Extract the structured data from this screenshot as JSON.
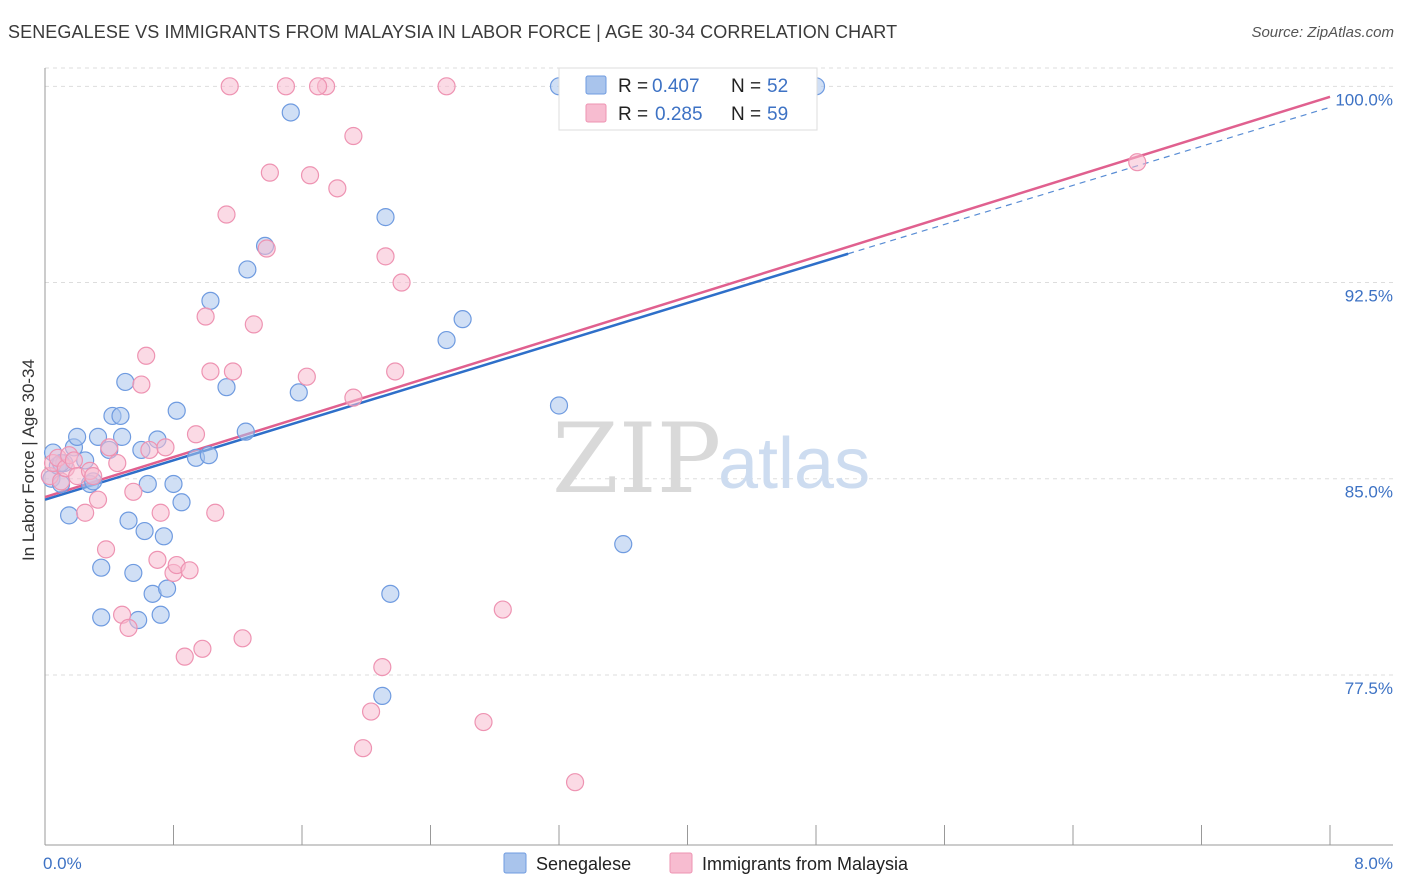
{
  "title": "SENEGALESE VS IMMIGRANTS FROM MALAYSIA IN LABOR FORCE | AGE 30-34 CORRELATION CHART",
  "source": "Source: ZipAtlas.com",
  "watermark": {
    "zip": "ZIP",
    "atlas": "atlas"
  },
  "legend": {
    "r_label": "R =",
    "n_label": "N =",
    "rows": [
      {
        "r": "0.407",
        "n": "52"
      },
      {
        "r": "0.285",
        "n": "59"
      }
    ]
  },
  "colors": {
    "blue_fill": "#a9c4ec",
    "blue_stroke": "#6f9be0",
    "blue_line": "#2e6fc9",
    "pink_fill": "#f7bcd0",
    "pink_stroke": "#ee93b2",
    "pink_line": "#e0608f",
    "grid": "#dddddd",
    "tick_label": "#3d72c4"
  },
  "chart_data": {
    "type": "scatter",
    "title": "SENEGALESE VS IMMIGRANTS FROM MALAYSIA IN LABOR FORCE | AGE 30-34 CORRELATION CHART",
    "xlabel": "",
    "ylabel": "In Labor Force | Age 30-34",
    "xlim": [
      0,
      8
    ],
    "ylim": [
      71.0,
      100.7
    ],
    "x_tick_labels": [
      {
        "value": 0,
        "label": "0.0%"
      },
      {
        "value": 8,
        "label": "8.0%"
      }
    ],
    "y_ticks": [
      {
        "value": 100.0,
        "label": "100.0%"
      },
      {
        "value": 92.5,
        "label": "92.5%"
      },
      {
        "value": 85.0,
        "label": "85.0%"
      },
      {
        "value": 77.5,
        "label": "77.5%"
      }
    ],
    "series": [
      {
        "name": "Senegalese",
        "color": "blue",
        "R": 0.407,
        "N": 52,
        "trend": {
          "x0": 0.0,
          "y0": 84.2,
          "x1": 5.0,
          "y1": 93.6,
          "dash_to_x": 8.0,
          "dash_to_y": 99.2
        },
        "points": [
          [
            0.04,
            85.0
          ],
          [
            0.05,
            86.0
          ],
          [
            0.08,
            85.5
          ],
          [
            0.1,
            84.8
          ],
          [
            0.12,
            85.6
          ],
          [
            0.15,
            83.6
          ],
          [
            0.18,
            86.2
          ],
          [
            0.2,
            86.6
          ],
          [
            0.25,
            85.7
          ],
          [
            0.28,
            84.8
          ],
          [
            0.3,
            84.9
          ],
          [
            0.33,
            86.6
          ],
          [
            0.35,
            81.6
          ],
          [
            0.35,
            79.7
          ],
          [
            0.4,
            86.1
          ],
          [
            0.42,
            87.4
          ],
          [
            0.47,
            87.4
          ],
          [
            0.48,
            86.6
          ],
          [
            0.5,
            88.7
          ],
          [
            0.52,
            83.4
          ],
          [
            0.55,
            81.4
          ],
          [
            0.58,
            79.6
          ],
          [
            0.6,
            86.1
          ],
          [
            0.62,
            83.0
          ],
          [
            0.64,
            84.8
          ],
          [
            0.67,
            80.6
          ],
          [
            0.7,
            86.5
          ],
          [
            0.72,
            79.8
          ],
          [
            0.74,
            82.8
          ],
          [
            0.76,
            80.8
          ],
          [
            0.8,
            84.8
          ],
          [
            0.82,
            87.6
          ],
          [
            0.85,
            84.1
          ],
          [
            0.94,
            85.8
          ],
          [
            1.02,
            85.9
          ],
          [
            1.03,
            91.8
          ],
          [
            1.13,
            88.5
          ],
          [
            1.25,
            86.8
          ],
          [
            1.26,
            93.0
          ],
          [
            1.37,
            93.9
          ],
          [
            1.53,
            99.0
          ],
          [
            1.58,
            88.3
          ],
          [
            2.12,
            95.0
          ],
          [
            2.15,
            80.6
          ],
          [
            2.1,
            76.7
          ],
          [
            2.5,
            90.3
          ],
          [
            2.6,
            91.1
          ],
          [
            3.2,
            87.8
          ],
          [
            3.6,
            82.5
          ],
          [
            3.2,
            100.0
          ],
          [
            4.8,
            100.0
          ],
          [
            0.1,
            85.6
          ]
        ]
      },
      {
        "name": "Immigrants from Malaysia",
        "color": "pink",
        "R": 0.285,
        "N": 59,
        "trend": {
          "x0": 0.0,
          "y0": 84.3,
          "x1": 8.0,
          "y1": 99.6
        },
        "points": [
          [
            0.03,
            85.1
          ],
          [
            0.05,
            85.6
          ],
          [
            0.08,
            85.8
          ],
          [
            0.1,
            84.9
          ],
          [
            0.13,
            85.4
          ],
          [
            0.15,
            85.9
          ],
          [
            0.18,
            85.7
          ],
          [
            0.2,
            85.1
          ],
          [
            0.25,
            83.7
          ],
          [
            0.28,
            85.3
          ],
          [
            0.3,
            85.1
          ],
          [
            0.33,
            84.2
          ],
          [
            0.38,
            82.3
          ],
          [
            0.4,
            86.2
          ],
          [
            0.45,
            85.6
          ],
          [
            0.48,
            79.8
          ],
          [
            0.52,
            79.3
          ],
          [
            0.55,
            84.5
          ],
          [
            0.6,
            88.6
          ],
          [
            0.63,
            89.7
          ],
          [
            0.65,
            86.1
          ],
          [
            0.7,
            81.9
          ],
          [
            0.72,
            83.7
          ],
          [
            0.75,
            86.2
          ],
          [
            0.8,
            81.4
          ],
          [
            0.82,
            81.7
          ],
          [
            0.87,
            78.2
          ],
          [
            0.9,
            81.5
          ],
          [
            0.94,
            86.7
          ],
          [
            0.98,
            78.5
          ],
          [
            1.0,
            91.2
          ],
          [
            1.03,
            89.1
          ],
          [
            1.06,
            83.7
          ],
          [
            1.13,
            95.1
          ],
          [
            1.17,
            89.1
          ],
          [
            1.23,
            78.9
          ],
          [
            1.3,
            90.9
          ],
          [
            1.38,
            93.8
          ],
          [
            1.4,
            96.7
          ],
          [
            1.5,
            100.0
          ],
          [
            1.63,
            88.9
          ],
          [
            1.65,
            96.6
          ],
          [
            1.75,
            100.0
          ],
          [
            1.82,
            96.1
          ],
          [
            1.92,
            88.1
          ],
          [
            1.92,
            98.1
          ],
          [
            1.15,
            100.0
          ],
          [
            1.7,
            100.0
          ],
          [
            1.98,
            74.7
          ],
          [
            2.03,
            76.1
          ],
          [
            2.1,
            77.8
          ],
          [
            2.12,
            93.5
          ],
          [
            2.18,
            89.1
          ],
          [
            2.22,
            92.5
          ],
          [
            2.5,
            100.0
          ],
          [
            2.73,
            75.7
          ],
          [
            2.85,
            80.0
          ],
          [
            3.3,
            73.4
          ],
          [
            6.8,
            97.1
          ]
        ]
      }
    ]
  },
  "bottom_legend": [
    "Senegalese",
    "Immigrants from Malaysia"
  ]
}
